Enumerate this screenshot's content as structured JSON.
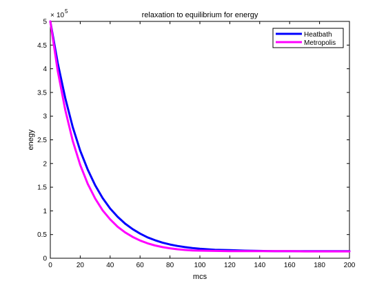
{
  "chart_data": {
    "type": "line",
    "title": "relaxation to equilibrium for energy",
    "xlabel": "mcs",
    "ylabel": "enegy",
    "xlim": [
      0,
      200
    ],
    "ylim": [
      0,
      500000
    ],
    "x_ticks": [
      0,
      20,
      40,
      60,
      80,
      100,
      120,
      140,
      160,
      180,
      200
    ],
    "y_ticks": [
      0,
      0.5,
      1,
      1.5,
      2,
      2.5,
      3,
      3.5,
      4,
      4.5,
      5
    ],
    "y_multiplier": {
      "base": "10",
      "exponent": "5"
    },
    "grid": false,
    "legend_position": "top-right",
    "series": [
      {
        "name": "Heatbath",
        "color": "#0000ff",
        "x": [
          0,
          5,
          10,
          15,
          20,
          25,
          30,
          35,
          40,
          45,
          50,
          55,
          60,
          65,
          70,
          75,
          80,
          85,
          90,
          95,
          100,
          110,
          120,
          130,
          140,
          150,
          160,
          170,
          180,
          190,
          200
        ],
        "y": [
          500000,
          412000,
          338000,
          277000,
          227000,
          187000,
          154000,
          127000,
          105000,
          87500,
          73000,
          61500,
          52000,
          44000,
          38000,
          33000,
          29000,
          26000,
          23500,
          21500,
          20000,
          18000,
          17000,
          16000,
          15500,
          15000,
          15000,
          15000,
          15000,
          15000,
          15000
        ]
      },
      {
        "name": "Metropolis",
        "color": "#ff00ff",
        "x": [
          0,
          5,
          10,
          15,
          20,
          25,
          30,
          35,
          40,
          45,
          50,
          55,
          60,
          65,
          70,
          75,
          80,
          85,
          90,
          95,
          100,
          110,
          120,
          130,
          140,
          150,
          160,
          170,
          180,
          190,
          200
        ],
        "y": [
          500000,
          395000,
          313000,
          248000,
          197000,
          157000,
          126000,
          101000,
          82000,
          66500,
          54500,
          45000,
          37500,
          31500,
          27000,
          23500,
          21000,
          19000,
          17500,
          16500,
          16000,
          15500,
          15000,
          15000,
          15000,
          15000,
          15000,
          14500,
          14500,
          14500,
          14500
        ]
      }
    ]
  }
}
